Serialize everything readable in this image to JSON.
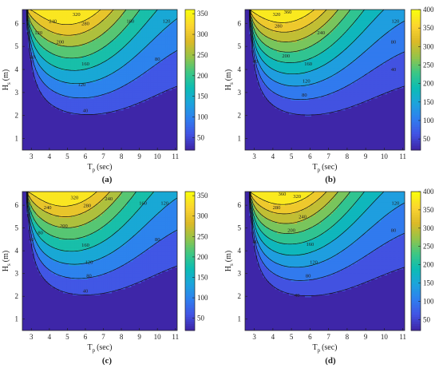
{
  "chart_data": [
    {
      "type": "contour",
      "panel_label": "(a)",
      "xlabel": "T",
      "xlabel_sub": "p",
      "xlabel_unit": "(sec)",
      "ylabel": "H",
      "ylabel_sub": "s",
      "ylabel_unit": "(m)",
      "xlim": [
        2.5,
        11.1
      ],
      "ylim": [
        0.5,
        6.6
      ],
      "xticks": [
        "3",
        "4",
        "5",
        "6",
        "7",
        "8",
        "9",
        "10",
        "11"
      ],
      "yticks": [
        "1",
        "2",
        "3",
        "4",
        "5",
        "6"
      ],
      "colorbar": {
        "min": 20,
        "max": 360,
        "ticks": [
          "50",
          "100",
          "150",
          "200",
          "250",
          "300",
          "350"
        ]
      },
      "levels": [
        40,
        80,
        120,
        160,
        200,
        240,
        280,
        320
      ],
      "peak": {
        "tp": 5.2,
        "value": 358
      },
      "contour_labels": [
        {
          "text": "40",
          "tp": 6.0,
          "hs": 2.22
        },
        {
          "text": "80",
          "tp": 10.0,
          "hs": 4.45
        },
        {
          "text": "80",
          "tp": 3.05,
          "hs": 4.55
        },
        {
          "text": "120",
          "tp": 5.8,
          "hs": 3.35
        },
        {
          "text": "120",
          "tp": 10.5,
          "hs": 6.1
        },
        {
          "text": "120",
          "tp": 3.4,
          "hs": 5.6
        },
        {
          "text": "160",
          "tp": 6.0,
          "hs": 4.25
        },
        {
          "text": "160",
          "tp": 8.5,
          "hs": 6.1
        },
        {
          "text": "200",
          "tp": 4.6,
          "hs": 5.2
        },
        {
          "text": "240",
          "tp": 4.2,
          "hs": 6.1
        },
        {
          "text": "280",
          "tp": 6.0,
          "hs": 6.0
        },
        {
          "text": "320",
          "tp": 5.5,
          "hs": 6.4
        }
      ]
    },
    {
      "type": "contour",
      "panel_label": "(b)",
      "xlabel": "T",
      "xlabel_sub": "p",
      "xlabel_unit": "(sec)",
      "ylabel": "H",
      "ylabel_sub": "s",
      "ylabel_unit": "(m)",
      "xlim": [
        2.5,
        11.1
      ],
      "ylim": [
        0.5,
        6.6
      ],
      "xticks": [
        "3",
        "4",
        "5",
        "6",
        "7",
        "8",
        "9",
        "10",
        "11"
      ],
      "yticks": [
        "1",
        "2",
        "3",
        "4",
        "5",
        "6"
      ],
      "colorbar": {
        "min": 20,
        "max": 400,
        "ticks": [
          "50",
          "100",
          "150",
          "200",
          "250",
          "300",
          "350",
          "400"
        ]
      },
      "levels": [
        40,
        80,
        120,
        160,
        200,
        240,
        280,
        320,
        360
      ],
      "peak": {
        "tp": 4.7,
        "value": 398
      },
      "contour_labels": [
        {
          "text": "40",
          "tp": 3.05,
          "hs": 4.35
        },
        {
          "text": "40",
          "tp": 10.5,
          "hs": 4.0
        },
        {
          "text": "80",
          "tp": 5.7,
          "hs": 2.9
        },
        {
          "text": "80",
          "tp": 10.5,
          "hs": 5.2
        },
        {
          "text": "120",
          "tp": 5.8,
          "hs": 3.5
        },
        {
          "text": "120",
          "tp": 10.6,
          "hs": 6.1
        },
        {
          "text": "160",
          "tp": 5.9,
          "hs": 4.25
        },
        {
          "text": "200",
          "tp": 4.7,
          "hs": 4.6
        },
        {
          "text": "240",
          "tp": 6.6,
          "hs": 5.6
        },
        {
          "text": "280",
          "tp": 4.3,
          "hs": 5.9
        },
        {
          "text": "320",
          "tp": 4.2,
          "hs": 6.4
        },
        {
          "text": "360",
          "tp": 4.8,
          "hs": 6.5
        }
      ]
    },
    {
      "type": "contour",
      "panel_label": "(c)",
      "xlabel": "T",
      "xlabel_sub": "p",
      "xlabel_unit": "(sec)",
      "ylabel": "H",
      "ylabel_sub": "s",
      "ylabel_unit": "(m)",
      "xlim": [
        2.5,
        11.1
      ],
      "ylim": [
        0.5,
        6.6
      ],
      "xticks": [
        "3",
        "4",
        "5",
        "6",
        "7",
        "8",
        "9",
        "10",
        "11"
      ],
      "yticks": [
        "1",
        "2",
        "3",
        "4",
        "5",
        "6"
      ],
      "colorbar": {
        "min": 20,
        "max": 360,
        "ticks": [
          "50",
          "100",
          "150",
          "200",
          "250",
          "300",
          "350"
        ]
      },
      "levels": [
        40,
        80,
        120,
        160,
        200,
        240,
        280,
        320
      ],
      "peak": {
        "tp": 5.0,
        "value": 358
      },
      "contour_labels": [
        {
          "text": "40",
          "tp": 6.0,
          "hs": 2.25
        },
        {
          "text": "40",
          "tp": 3.0,
          "hs": 4.5
        },
        {
          "text": "80",
          "tp": 6.2,
          "hs": 2.9
        },
        {
          "text": "80",
          "tp": 10.0,
          "hs": 4.5
        },
        {
          "text": "80",
          "tp": 3.5,
          "hs": 4.8
        },
        {
          "text": "120",
          "tp": 6.2,
          "hs": 3.5
        },
        {
          "text": "120",
          "tp": 10.4,
          "hs": 6.1
        },
        {
          "text": "160",
          "tp": 6.0,
          "hs": 4.25
        },
        {
          "text": "160",
          "tp": 9.2,
          "hs": 6.1
        },
        {
          "text": "200",
          "tp": 4.8,
          "hs": 5.1
        },
        {
          "text": "240",
          "tp": 3.9,
          "hs": 5.9
        },
        {
          "text": "240",
          "tp": 7.3,
          "hs": 6.3
        },
        {
          "text": "280",
          "tp": 6.1,
          "hs": 6.0
        },
        {
          "text": "320",
          "tp": 5.4,
          "hs": 6.35
        }
      ]
    },
    {
      "type": "contour",
      "panel_label": "(d)",
      "xlabel": "T",
      "xlabel_sub": "p",
      "xlabel_unit": "(sec)",
      "ylabel": "H",
      "ylabel_sub": "s",
      "ylabel_unit": "(m)",
      "xlim": [
        2.5,
        11.1
      ],
      "ylim": [
        0.5,
        6.6
      ],
      "xticks": [
        "3",
        "4",
        "5",
        "6",
        "7",
        "8",
        "9",
        "10",
        "11"
      ],
      "yticks": [
        "1",
        "2",
        "3",
        "4",
        "5",
        "6"
      ],
      "colorbar": {
        "min": 20,
        "max": 400,
        "ticks": [
          "50",
          "100",
          "150",
          "200",
          "250",
          "300",
          "350",
          "400"
        ]
      },
      "levels": [
        40,
        80,
        120,
        160,
        200,
        240,
        280,
        320,
        360
      ],
      "peak": {
        "tp": 4.7,
        "value": 398
      },
      "contour_labels": [
        {
          "text": "40",
          "tp": 5.3,
          "hs": 2.05
        },
        {
          "text": "40",
          "tp": 3.05,
          "hs": 4.4
        },
        {
          "text": "80",
          "tp": 5.9,
          "hs": 2.9
        },
        {
          "text": "80",
          "tp": 10.5,
          "hs": 4.9
        },
        {
          "text": "120",
          "tp": 6.2,
          "hs": 3.5
        },
        {
          "text": "120",
          "tp": 10.6,
          "hs": 6.1
        },
        {
          "text": "160",
          "tp": 6.0,
          "hs": 4.3
        },
        {
          "text": "200",
          "tp": 5.0,
          "hs": 4.9
        },
        {
          "text": "240",
          "tp": 5.6,
          "hs": 5.5
        },
        {
          "text": "280",
          "tp": 4.2,
          "hs": 5.9
        },
        {
          "text": "320",
          "tp": 5.3,
          "hs": 6.4
        },
        {
          "text": "360",
          "tp": 4.5,
          "hs": 6.5
        }
      ]
    }
  ],
  "colormap": [
    "#3e26a8",
    "#4254e4",
    "#2f7fef",
    "#1ca4dc",
    "#0cbcb4",
    "#3dc784",
    "#95c449",
    "#dbba27",
    "#fbd431",
    "#f9fb0e"
  ]
}
